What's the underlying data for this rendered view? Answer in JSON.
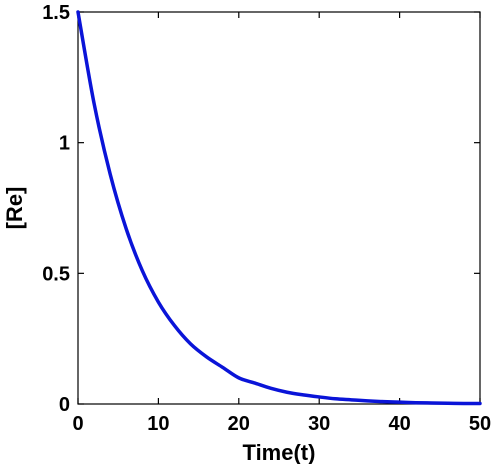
{
  "chart_data": {
    "type": "line",
    "title": "",
    "xlabel": "Time(t)",
    "ylabel": "[Re]",
    "xlim": [
      0,
      50
    ],
    "ylim": [
      0,
      1.5
    ],
    "xticks": [
      0,
      10,
      20,
      30,
      40,
      50
    ],
    "yticks": [
      0,
      0.5,
      1,
      1.5
    ],
    "xtick_labels": [
      "0",
      "10",
      "20",
      "30",
      "40",
      "50"
    ],
    "ytick_labels": [
      "0",
      "0.5",
      "1",
      "1.5"
    ],
    "grid": false,
    "legend": "none",
    "series": [
      {
        "color": "#0a14d8",
        "x": [
          0,
          2,
          4,
          6,
          8,
          10,
          12,
          14,
          16,
          18,
          20,
          22,
          24,
          26,
          28,
          30,
          32,
          34,
          36,
          38,
          40,
          42,
          44,
          46,
          48,
          50
        ],
        "y": [
          1.5,
          1.15,
          0.88,
          0.67,
          0.51,
          0.39,
          0.3,
          0.23,
          0.18,
          0.14,
          0.1,
          0.08,
          0.06,
          0.045,
          0.035,
          0.027,
          0.02,
          0.016,
          0.012,
          0.009,
          0.007,
          0.005,
          0.004,
          0.003,
          0.002,
          0.002
        ]
      }
    ]
  }
}
